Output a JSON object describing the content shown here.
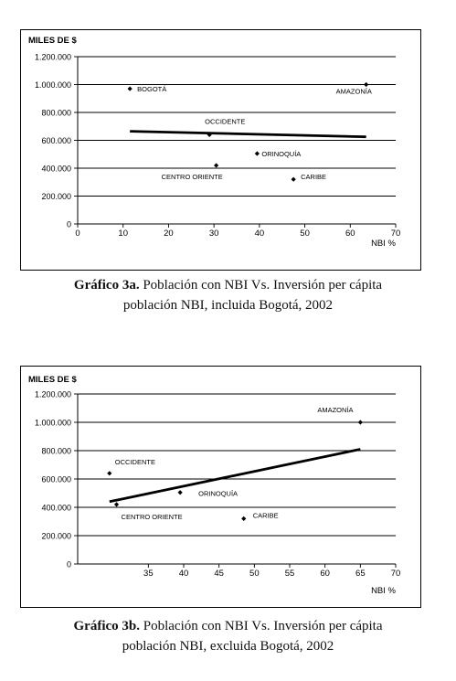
{
  "chart_data": [
    {
      "type": "scatter",
      "ylabel": "MILES DE $",
      "xlabel": "NBI %",
      "xlim": [
        0,
        70
      ],
      "ylim": [
        0,
        1200000
      ],
      "x_ticks": [
        "0",
        "10",
        "20",
        "30",
        "40",
        "50",
        "60",
        "70"
      ],
      "y_ticks": [
        "0",
        "200.000",
        "400.000",
        "600.000",
        "800.000",
        "1.000.000",
        "1.200.000"
      ],
      "grid": "horizontal",
      "points": [
        {
          "label": "BOGOTÁ",
          "x": 11.5,
          "y": 970000
        },
        {
          "label": "AMAZONÍA",
          "x": 63.5,
          "y": 1000000
        },
        {
          "label": "OCCIDENTE",
          "x": 29,
          "y": 640000
        },
        {
          "label": "ORINOQUÍA",
          "x": 39.5,
          "y": 505000
        },
        {
          "label": "CENTRO ORIENTE",
          "x": 30.5,
          "y": 420000
        },
        {
          "label": "CARIBE",
          "x": 47.5,
          "y": 320000
        }
      ],
      "trendline": {
        "x": [
          11.5,
          63.5
        ],
        "y": [
          665000,
          625000
        ]
      }
    },
    {
      "type": "scatter",
      "ylabel": "MILES DE $",
      "xlabel": "NBI %",
      "xlim": [
        25,
        70
      ],
      "ylim": [
        0,
        1200000
      ],
      "x_ticks": [
        "35",
        "40",
        "45",
        "50",
        "55",
        "60",
        "65",
        "70"
      ],
      "y_ticks": [
        "0",
        "200.000",
        "400.000",
        "600.000",
        "800.000",
        "1.000.000",
        "1.200.000"
      ],
      "grid": "horizontal",
      "points": [
        {
          "label": "AMAZONÍA",
          "x": 65,
          "y": 1000000
        },
        {
          "label": "OCCIDENTE",
          "x": 29.5,
          "y": 640000
        },
        {
          "label": "ORINOQUÍA",
          "x": 39.5,
          "y": 505000
        },
        {
          "label": "CENTRO ORIENTE",
          "x": 30.5,
          "y": 420000
        },
        {
          "label": "CARIBE",
          "x": 48.5,
          "y": 320000
        }
      ],
      "trendline": {
        "x": [
          29.5,
          65
        ],
        "y": [
          440000,
          810000
        ]
      }
    }
  ],
  "captions": [
    {
      "label": "Gráfico 3a.",
      "line1": "Población con NBI Vs. Inversión per cápita",
      "line2": "población NBI, incluida Bogotá, 2002"
    },
    {
      "label": "Gráfico 3b.",
      "line1": "Población con NBI Vs. Inversión per cápita",
      "line2": "población NBI, excluida Bogotá, 2002"
    }
  ]
}
